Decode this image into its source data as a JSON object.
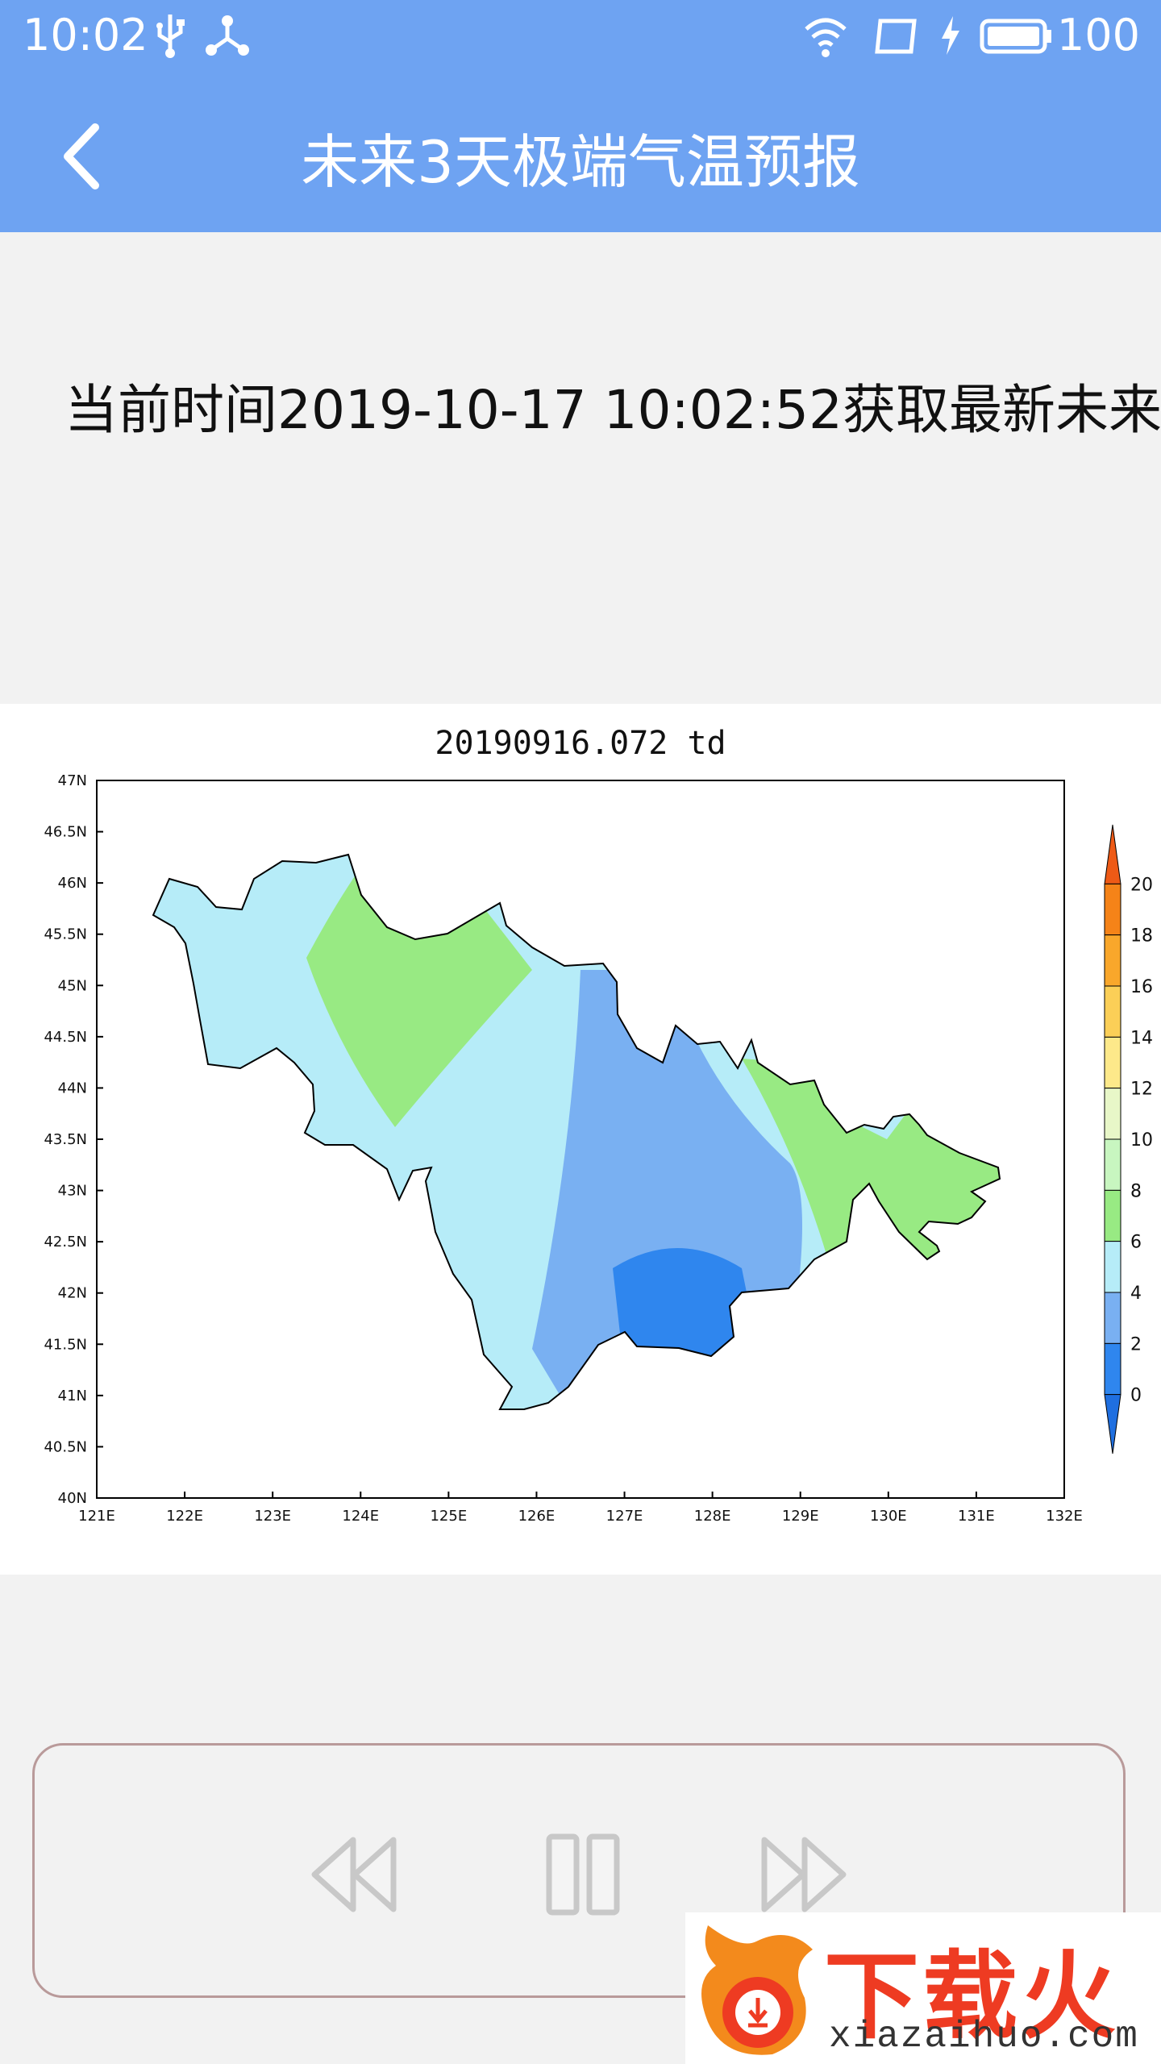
{
  "status_bar": {
    "time": "10:02",
    "battery": "100"
  },
  "header": {
    "title": "未来3天极端气温预报",
    "back_icon": "chevron-left-icon"
  },
  "notice": {
    "text": "当前时间2019-10-17 10:02:52获取最新未来"
  },
  "chart_data": {
    "type": "map",
    "title": "20190916.072  td",
    "x_ticks": [
      "121E",
      "122E",
      "123E",
      "124E",
      "125E",
      "126E",
      "127E",
      "128E",
      "129E",
      "130E",
      "131E",
      "132E"
    ],
    "y_ticks": [
      "47N",
      "46.5N",
      "46N",
      "45.5N",
      "45N",
      "44.5N",
      "44N",
      "43.5N",
      "43N",
      "42.5N",
      "42N",
      "41.5N",
      "41N",
      "40.5N",
      "40N"
    ],
    "xlim": [
      121,
      132
    ],
    "ylim": [
      40,
      47
    ],
    "colorbar": {
      "labels": [
        "0",
        "2",
        "4",
        "6",
        "8",
        "10",
        "12",
        "14",
        "16",
        "18",
        "20"
      ],
      "colors": [
        "#1f6fe0",
        "#2f86ee",
        "#79b0f2",
        "#b6ecf8",
        "#98ea83",
        "#c8f6c0",
        "#e8f7c8",
        "#fde98a",
        "#fbcf57",
        "#f9a72b",
        "#f58318",
        "#ee5a16"
      ]
    }
  },
  "player": {
    "rewind_icon": "rewind-icon",
    "pause_icon": "pause-icon",
    "forward_icon": "fast-forward-icon"
  },
  "watermark": {
    "cn": "下载火",
    "en": "xiazaihuo.com"
  },
  "colors": {
    "accent": "#6ea3f2",
    "background": "#f2f2f2"
  }
}
